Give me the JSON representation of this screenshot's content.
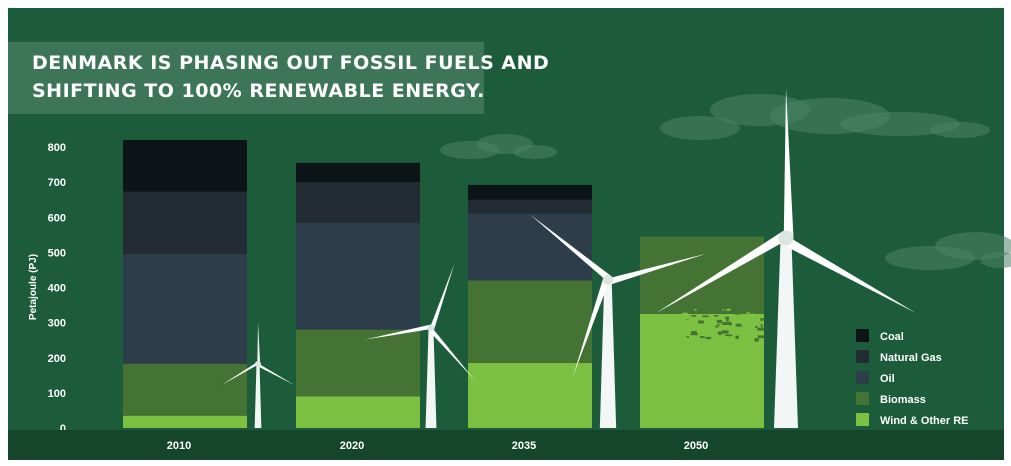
{
  "title": {
    "line1": "DENMARK IS PHASING OUT FOSSIL FUELS AND",
    "line2": "SHIFTING TO 100% RENEWABLE ENERGY."
  },
  "colors": {
    "background": "#1d5c3a",
    "title_box": "#3c7558",
    "Coal": "#0d1418",
    "Natural Gas": "#232c33",
    "Oil": "#2d3e4a",
    "Biomass": "#447333",
    "Wind & Other RE": "#7dc143"
  },
  "chart_data": {
    "type": "bar",
    "stacked": true,
    "categories": [
      "2010",
      "2020",
      "2035",
      "2050"
    ],
    "ylabel": "Petajoule (PJ)",
    "ylim": [
      0,
      800
    ],
    "yticks": [
      0,
      100,
      200,
      300,
      400,
      500,
      600,
      700,
      800
    ],
    "legend_position": "bottom-right",
    "series": [
      {
        "name": "Wind & Other RE",
        "values": [
          35,
          90,
          185,
          325
        ]
      },
      {
        "name": "Biomass",
        "values": [
          148,
          190,
          235,
          220
        ]
      },
      {
        "name": "Oil",
        "values": [
          312,
          303,
          190,
          0
        ]
      },
      {
        "name": "Natural Gas",
        "values": [
          178,
          117,
          40,
          0
        ]
      },
      {
        "name": "Coal",
        "values": [
          147,
          55,
          42,
          0
        ]
      }
    ],
    "legend": [
      "Coal",
      "Natural Gas",
      "Oil",
      "Biomass",
      "Wind & Other RE"
    ]
  }
}
